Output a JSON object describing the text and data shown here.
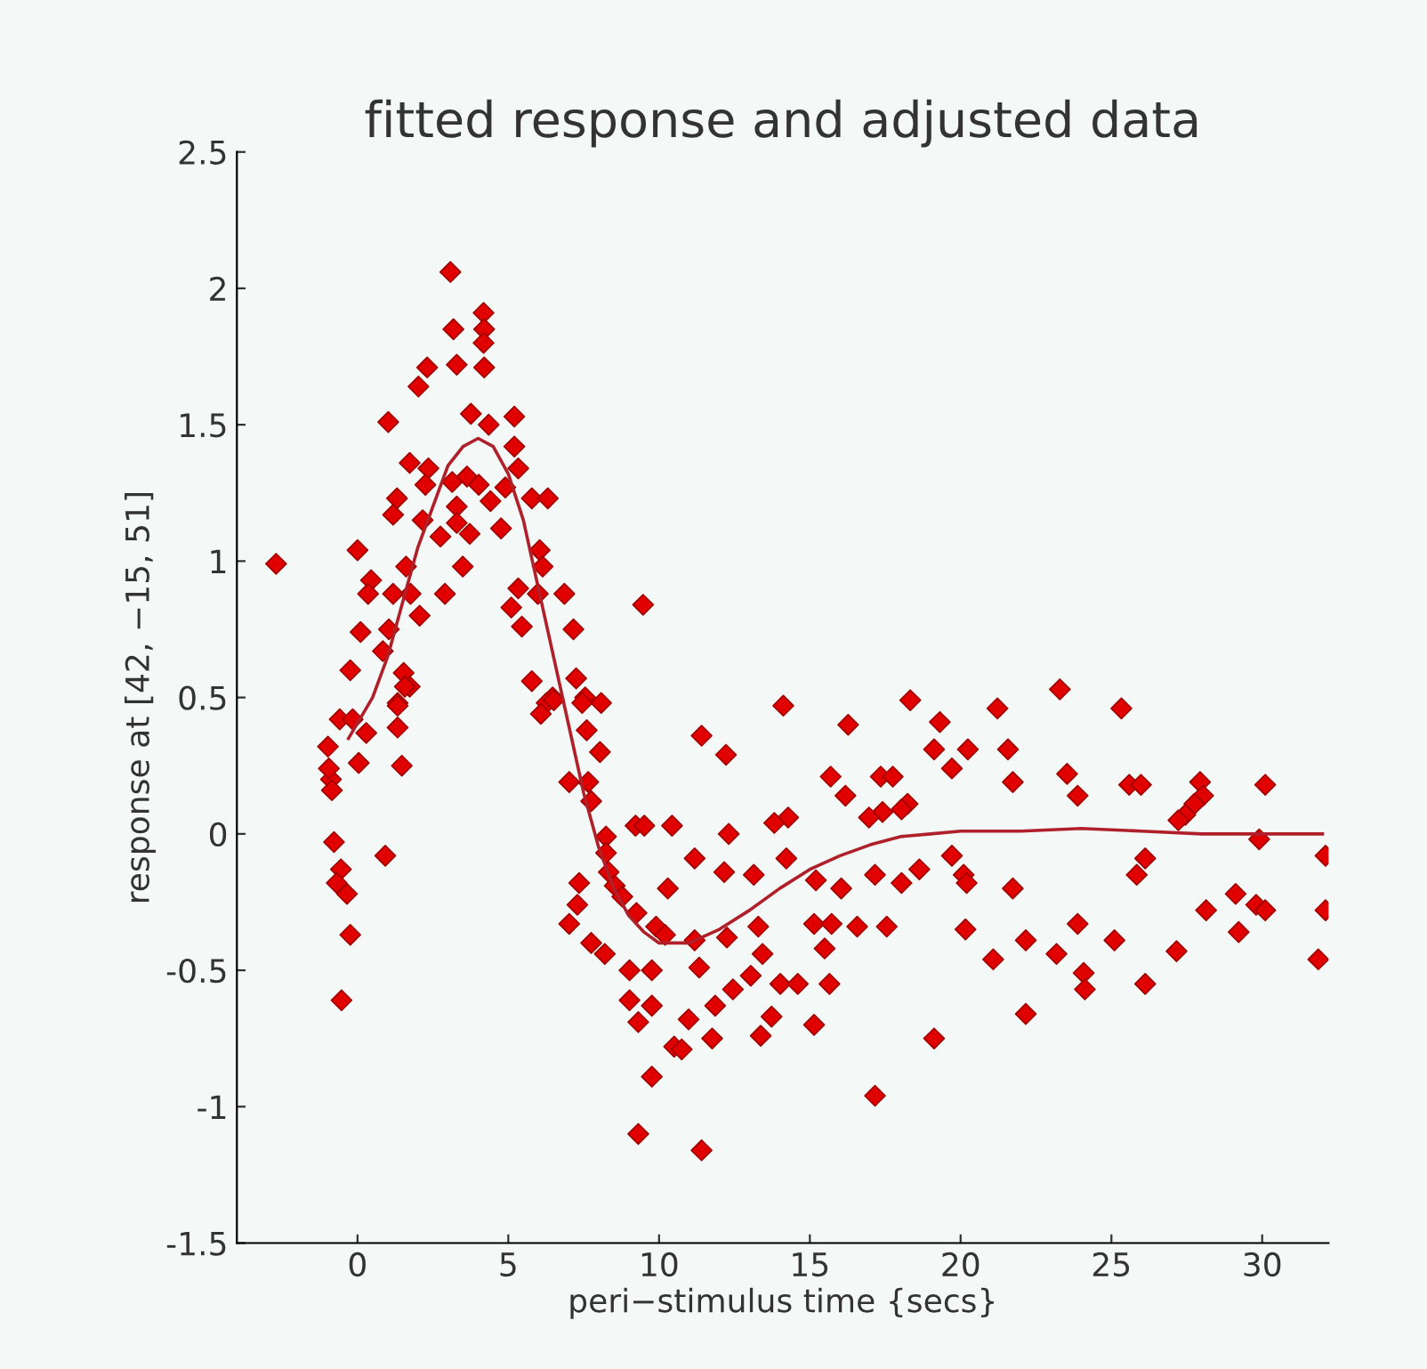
{
  "chart_data": {
    "type": "scatter",
    "title": "fitted response and adjusted data",
    "xlabel": "peri−stimulus time {secs}",
    "ylabel": "response at [42, −15, 51]",
    "xlim": [
      -4,
      32.2
    ],
    "ylim": [
      -1.5,
      2.5
    ],
    "xticks": [
      0,
      5,
      10,
      15,
      20,
      25,
      30
    ],
    "yticks": [
      -1.5,
      -1,
      -0.5,
      0,
      0.5,
      1,
      1.5,
      2,
      2.5
    ],
    "grid": false,
    "legend": false,
    "series": [
      {
        "color": "#e00000",
        "marker": "diamond",
        "x": [
          -2.7,
          3.08,
          4.18,
          4.2,
          4.18,
          3.18,
          2.31,
          2.02,
          3.29,
          4.2,
          1.02,
          3.76,
          4.35,
          5.2,
          5.2,
          5.33,
          1.73,
          2.35,
          2.25,
          3.14,
          3.63,
          4.02,
          4.41,
          3.29,
          4.9,
          5.78,
          6.31,
          1.31,
          1.18,
          2.16,
          3.29,
          2.75,
          3.72,
          4.76,
          6.04,
          6.14,
          0,
          1.61,
          3.49,
          0.45,
          0.35,
          1.18,
          1.76,
          2.9,
          5.33,
          5.98,
          6.86,
          9.47,
          5.1,
          5.45,
          7.16,
          0.1,
          1.04,
          2.06,
          0.84,
          -0.24,
          1.53,
          1.73,
          5.78,
          6.47,
          7.25,
          7.55,
          8.08,
          1.33,
          -0.88,
          -0.95,
          -0.85,
          -0.98,
          -0.59,
          -0.16,
          0.29,
          0.04,
          1.33,
          1.33,
          1.47,
          1.57,
          -0.78,
          0.92,
          -0.55,
          -0.69,
          -0.35,
          -0.24,
          -0.53,
          6.27,
          6.51,
          7.45,
          7.6,
          6.08,
          8.04,
          7.02,
          7.65,
          7.75,
          8.24,
          8.24,
          8.33,
          8.53,
          8.78,
          9.25,
          9.9,
          10.2,
          9.22,
          9.51,
          10.43,
          7.35,
          7.29,
          7.02,
          7.75,
          8.2,
          9.02,
          9.76,
          9.02,
          9.76,
          9.31,
          9.76,
          9.31,
          10.29,
          10.5,
          11.41,
          12.22,
          14.12,
          16.27,
          18.33,
          19.31,
          19.12,
          20.24,
          19.71,
          21.22,
          21.57,
          21.73,
          23.29,
          23.53,
          23.88,
          25.33,
          25.59,
          25.98,
          27.94,
          28.04,
          27.75,
          27.45,
          27.22,
          30.1,
          29.9,
          32.1,
          32.1,
          31.86,
          15.69,
          16.18,
          17.35,
          17.75,
          17.41,
          16.96,
          18.24,
          18.04,
          14.28,
          13.82,
          12.31,
          11.18,
          12.16,
          13.14,
          14.22,
          15.2,
          16.04,
          17.16,
          18.04,
          18.63,
          19.71,
          20.1,
          20.2,
          21.73,
          25.84,
          26.12,
          29.12,
          29.8,
          30.1,
          28.14,
          11.18,
          12.25,
          13.29,
          13.43,
          15.14,
          15.72,
          15.49,
          16.57,
          17.55,
          20.16,
          21.08,
          22.16,
          23.18,
          23.88,
          25.1,
          27.16,
          29.22,
          11.33,
          13.04,
          12.45,
          14.02,
          14.6,
          15.65,
          24.08,
          24.12,
          26.12,
          11.86,
          10.98,
          13.73,
          15.14,
          13.37,
          11.76,
          10.75,
          19.12,
          22.16,
          17.16,
          11.41
        ],
        "values": [
          0.99,
          2.06,
          1.91,
          1.85,
          1.8,
          1.85,
          1.71,
          1.64,
          1.72,
          1.71,
          1.51,
          1.54,
          1.5,
          1.53,
          1.42,
          1.34,
          1.36,
          1.34,
          1.28,
          1.29,
          1.31,
          1.28,
          1.22,
          1.2,
          1.27,
          1.23,
          1.23,
          1.23,
          1.17,
          1.15,
          1.14,
          1.09,
          1.1,
          1.12,
          1.04,
          0.98,
          1.04,
          0.98,
          0.98,
          0.93,
          0.88,
          0.88,
          0.88,
          0.88,
          0.9,
          0.88,
          0.88,
          0.84,
          0.83,
          0.76,
          0.75,
          0.74,
          0.75,
          0.8,
          0.67,
          0.6,
          0.59,
          0.54,
          0.56,
          0.5,
          0.57,
          0.5,
          0.48,
          0.48,
          0.2,
          0.24,
          0.16,
          0.32,
          0.42,
          0.42,
          0.37,
          0.26,
          0.47,
          0.39,
          0.25,
          0.54,
          -0.03,
          -0.08,
          -0.13,
          -0.18,
          -0.22,
          -0.37,
          -0.61,
          0.48,
          0.49,
          0.48,
          0.38,
          0.44,
          0.3,
          0.19,
          0.19,
          0.12,
          -0.01,
          -0.07,
          -0.14,
          -0.19,
          -0.23,
          -0.29,
          -0.34,
          -0.37,
          0.03,
          0.03,
          0.03,
          -0.18,
          -0.26,
          -0.33,
          -0.4,
          -0.44,
          -0.5,
          -0.5,
          -0.61,
          -0.63,
          -0.69,
          -0.89,
          -1.1,
          -0.2,
          -0.78,
          0.36,
          0.29,
          0.47,
          0.4,
          0.49,
          0.41,
          0.31,
          0.31,
          0.24,
          0.46,
          0.31,
          0.19,
          0.53,
          0.22,
          0.14,
          0.46,
          0.18,
          0.18,
          0.19,
          0.14,
          0.11,
          0.07,
          0.05,
          0.18,
          -0.02,
          -0.08,
          -0.28,
          -0.46,
          0.21,
          0.14,
          0.21,
          0.21,
          0.08,
          0.06,
          0.11,
          0.09,
          0.06,
          0.04,
          0,
          -0.09,
          -0.14,
          -0.15,
          -0.09,
          -0.17,
          -0.2,
          -0.15,
          -0.18,
          -0.13,
          -0.08,
          -0.15,
          -0.18,
          -0.2,
          -0.15,
          -0.09,
          -0.22,
          -0.26,
          -0.28,
          -0.28,
          -0.39,
          -0.38,
          -0.34,
          -0.44,
          -0.33,
          -0.33,
          -0.42,
          -0.34,
          -0.34,
          -0.35,
          -0.46,
          -0.39,
          -0.44,
          -0.33,
          -0.39,
          -0.43,
          -0.36,
          -0.49,
          -0.52,
          -0.57,
          -0.55,
          -0.55,
          -0.55,
          -0.51,
          -0.57,
          -0.55,
          -0.63,
          -0.68,
          -0.67,
          -0.7,
          -0.74,
          -0.75,
          -0.79,
          -0.75,
          -0.66,
          -0.96,
          -1.16
        ]
      },
      {
        "type": "line",
        "color": "#b0202a",
        "marker": "none",
        "line_style": "solid",
        "x": [
          -0.3,
          0.5,
          1,
          1.5,
          2,
          2.5,
          3,
          3.5,
          4,
          4.5,
          5,
          5.5,
          6,
          6.5,
          7,
          7.5,
          8,
          8.5,
          9,
          9.5,
          10,
          11,
          12,
          13,
          14,
          15,
          16,
          17,
          18,
          19,
          20,
          22,
          24,
          26,
          28,
          30,
          32
        ],
        "values": [
          0.35,
          0.5,
          0.65,
          0.85,
          1.05,
          1.2,
          1.35,
          1.42,
          1.45,
          1.42,
          1.32,
          1.15,
          0.9,
          0.65,
          0.4,
          0.15,
          -0.05,
          -0.2,
          -0.3,
          -0.36,
          -0.4,
          -0.4,
          -0.35,
          -0.28,
          -0.2,
          -0.13,
          -0.08,
          -0.04,
          -0.01,
          0,
          0.01,
          0.01,
          0.02,
          0.01,
          0,
          0,
          0
        ]
      }
    ]
  }
}
